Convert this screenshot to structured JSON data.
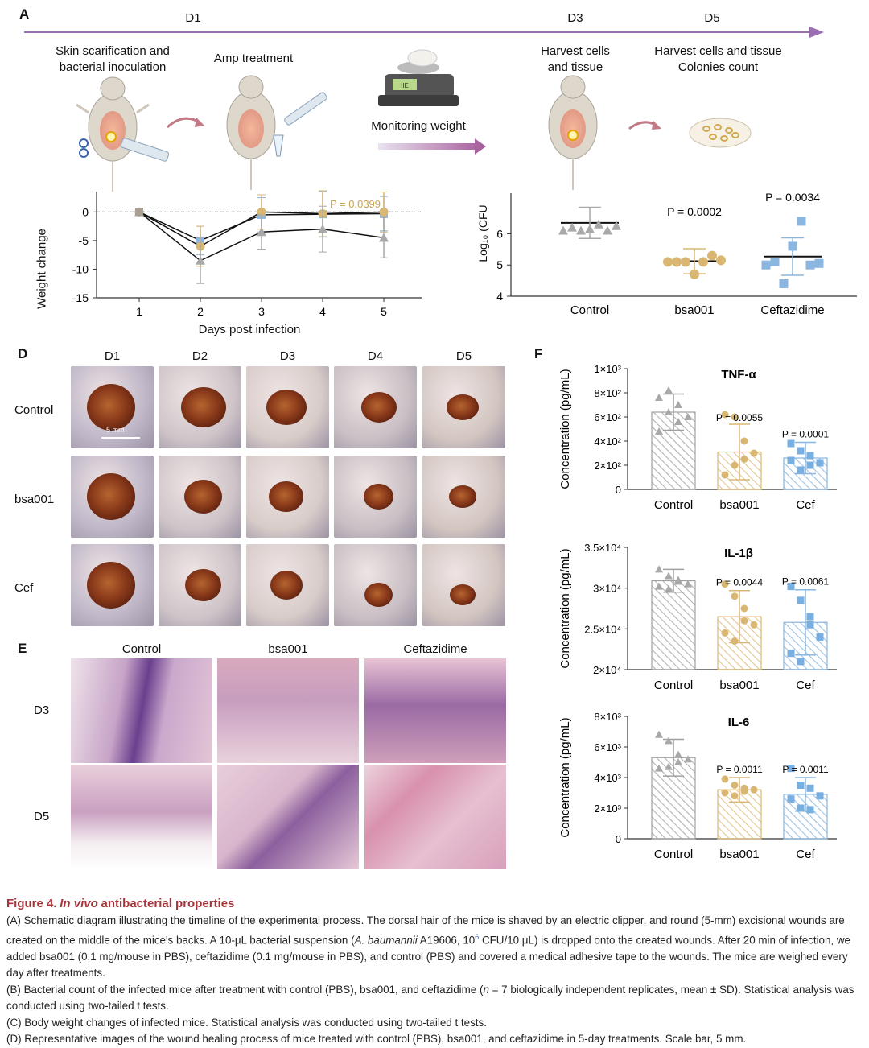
{
  "panelA": {
    "label": "A",
    "days": [
      "D1",
      "D3",
      "D5"
    ],
    "steps": {
      "scarification": "Skin scarification and\nbacterial inoculation",
      "amp": "Amp treatment",
      "monitor": "Monitoring weight",
      "harvest": "Harvest cells\nand tissue",
      "harvest2": "Harvest cells and tissue\nColonies count"
    },
    "scale_display": "IIE"
  },
  "panelC": {
    "ylabel": "Weight change",
    "xlabel": "Days post infection",
    "annotation": "P = 0.0399",
    "chart_data": {
      "type": "line",
      "x": [
        1,
        2,
        3,
        4,
        5
      ],
      "xticks": [
        "1",
        "2",
        "3",
        "4",
        "5"
      ],
      "yticks": [
        "0",
        "-5",
        "-10",
        "-15"
      ],
      "ylim": [
        -15,
        3
      ],
      "series": [
        {
          "values": [
            0,
            -5,
            -0.5,
            -0.4,
            -0.3
          ],
          "err": [
            0,
            2.5,
            3,
            4,
            3
          ]
        },
        {
          "values": [
            0,
            -6,
            0,
            -0.3,
            0
          ],
          "err": [
            0,
            3.5,
            3,
            4,
            3.5
          ]
        },
        {
          "values": [
            0,
            -8.5,
            -3.5,
            -3,
            -4.5
          ],
          "err": [
            0,
            4,
            3,
            4,
            3.5
          ]
        }
      ]
    }
  },
  "panelB": {
    "ylabel": "Log₁₀ (CFU",
    "yticks": [
      "4",
      "5",
      "6"
    ],
    "categories": [
      "Control",
      "bsa001",
      "Ceftazidime"
    ],
    "pvalues": [
      "",
      "P = 0.0002",
      "P = 0.0034"
    ],
    "chart_data": {
      "type": "scatter",
      "ylim": [
        4,
        7.3
      ],
      "means": [
        6.35,
        5.12,
        5.27
      ],
      "sd": [
        0.5,
        0.4,
        0.6
      ],
      "points": [
        [
          6.1,
          6.2,
          6.1,
          6.15,
          6.3,
          6.1,
          6.25
        ],
        [
          5.1,
          5.1,
          5.1,
          4.7,
          5.1,
          5.3,
          5.15
        ],
        [
          5.0,
          5.1,
          4.4,
          5.6,
          6.4,
          5.0,
          5.05
        ]
      ]
    }
  },
  "panelD": {
    "label": "D",
    "cols": [
      "D1",
      "D2",
      "D3",
      "D4",
      "D5"
    ],
    "rows": [
      "Control",
      "bsa001",
      "Cef"
    ],
    "scalebar": "5 mm"
  },
  "panelE": {
    "label": "E",
    "cols": [
      "Control",
      "bsa001",
      "Ceftazidime"
    ],
    "rows": [
      "D3",
      "D5"
    ]
  },
  "panelF": {
    "label": "F",
    "ylabel": "Concentration (pg/mL)",
    "categories": [
      "Control",
      "bsa001",
      "Cef"
    ],
    "charts": [
      {
        "title": "TNF-α",
        "yticks": [
          "0",
          "2×10²",
          "4×10²",
          "6×10²",
          "8×10²",
          "1×10³"
        ],
        "ymax": 1000,
        "values": [
          640,
          310,
          260
        ],
        "sd": [
          150,
          230,
          130
        ],
        "pvalues": [
          "",
          "P = 0.0055",
          "P = 0.0001"
        ],
        "points": [
          [
            760,
            820,
            700,
            600,
            480,
            640,
            560
          ],
          [
            620,
            600,
            400,
            300,
            120,
            200,
            250
          ],
          [
            380,
            320,
            200,
            220,
            240,
            160,
            280
          ]
        ]
      },
      {
        "title": "IL-1β",
        "yticks": [
          "2×10⁴",
          "2.5×10⁴",
          "3×10⁴",
          "3.5×10⁴"
        ],
        "ymin": 20000,
        "ymax": 35000,
        "values": [
          30900,
          26500,
          25800
        ],
        "sd": [
          1400,
          3200,
          4000
        ],
        "pvalues": [
          "",
          "P = 0.0044",
          "P = 0.0061"
        ],
        "points": [
          [
            32300,
            31500,
            31000,
            30500,
            30200,
            29900,
            30800
          ],
          [
            30500,
            29000,
            27500,
            25500,
            24500,
            23500,
            26000
          ],
          [
            30200,
            28500,
            26500,
            24000,
            22000,
            21000,
            25500
          ]
        ]
      },
      {
        "title": "IL-6",
        "yticks": [
          "0",
          "2×10³",
          "4×10³",
          "6×10³",
          "8×10³"
        ],
        "ymax": 8000,
        "values": [
          5300,
          3200,
          2900
        ],
        "sd": [
          1200,
          800,
          1100
        ],
        "pvalues": [
          "",
          "P = 0.0011",
          "P = 0.0011"
        ],
        "points": [
          [
            6800,
            6400,
            5500,
            5200,
            4600,
            4700,
            5000
          ],
          [
            3900,
            3500,
            3300,
            3200,
            3000,
            2800,
            3100
          ],
          [
            4600,
            3500,
            3300,
            2800,
            2600,
            2000,
            1900
          ]
        ]
      }
    ]
  },
  "caption": {
    "title_prefix": "Figure 4.",
    "title_italic": "In vivo",
    "title_rest": "antibacterial properties",
    "a1": "(A) Schematic diagram illustrating the timeline of the experimental process. The dorsal hair of the mice is shaved by an electric clipper, and round (5-mm) excisional wounds are created on the middle of the mice's backs. A 10-μL bacterial suspension (",
    "a_italic": "A. baumannii",
    "a2": " A19606, 10",
    "a_sup": "6",
    "a3": " CFU/10 μL) is dropped onto the created wounds. After 20 min of infection, we added bsa001 (0.1 mg/mouse in PBS), ceftazidime (0.1 mg/mouse in PBS), and control (PBS) and covered a medical adhesive tape to the wounds. The mice are weighed every day after treatments.",
    "b1": "(B) Bacterial count of the infected mice after treatment with control (PBS), bsa001, and ceftazidime (",
    "b_italic": "n",
    "b2": " = 7 biologically independent replicates, mean ± SD). Statistical analysis was conducted using two-tailed t tests.",
    "c": "(C) Body weight changes of infected mice. Statistical analysis was conducted using two-tailed t tests.",
    "d": "(D) Representative images of the wound healing process of mice treated with control (PBS), bsa001, and ceftazidime in 5-day treatments. Scale bar, 5 mm."
  }
}
